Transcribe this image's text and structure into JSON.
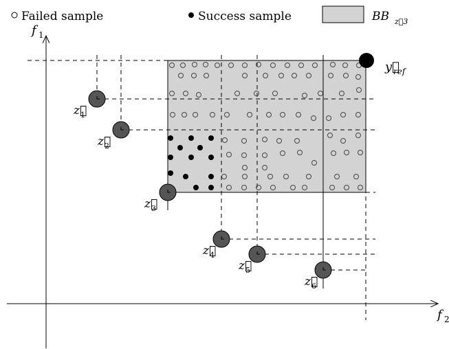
{
  "legend": {
    "failed_label": "Failed sample",
    "success_label": "Success sample",
    "box_main": "BB",
    "box_sub": "z⃗3"
  },
  "axes": {
    "y_main": "f",
    "y_sub": "1",
    "x_main": "f",
    "x_sub": "2"
  },
  "reference": {
    "main": "y⃗",
    "sub": "ref"
  },
  "points": [
    {
      "main": "z⃗",
      "sub": "1"
    },
    {
      "main": "z⃗",
      "sub": "2"
    },
    {
      "main": "z⃗",
      "sub": "3"
    },
    {
      "main": "z⃗",
      "sub": "4"
    },
    {
      "main": "z⃗",
      "sub": "5"
    },
    {
      "main": "z⃗",
      "sub": "6"
    }
  ],
  "colors": {
    "box_fill": "#d3d3d3",
    "point_fill": "#555555",
    "line": "#000000"
  }
}
